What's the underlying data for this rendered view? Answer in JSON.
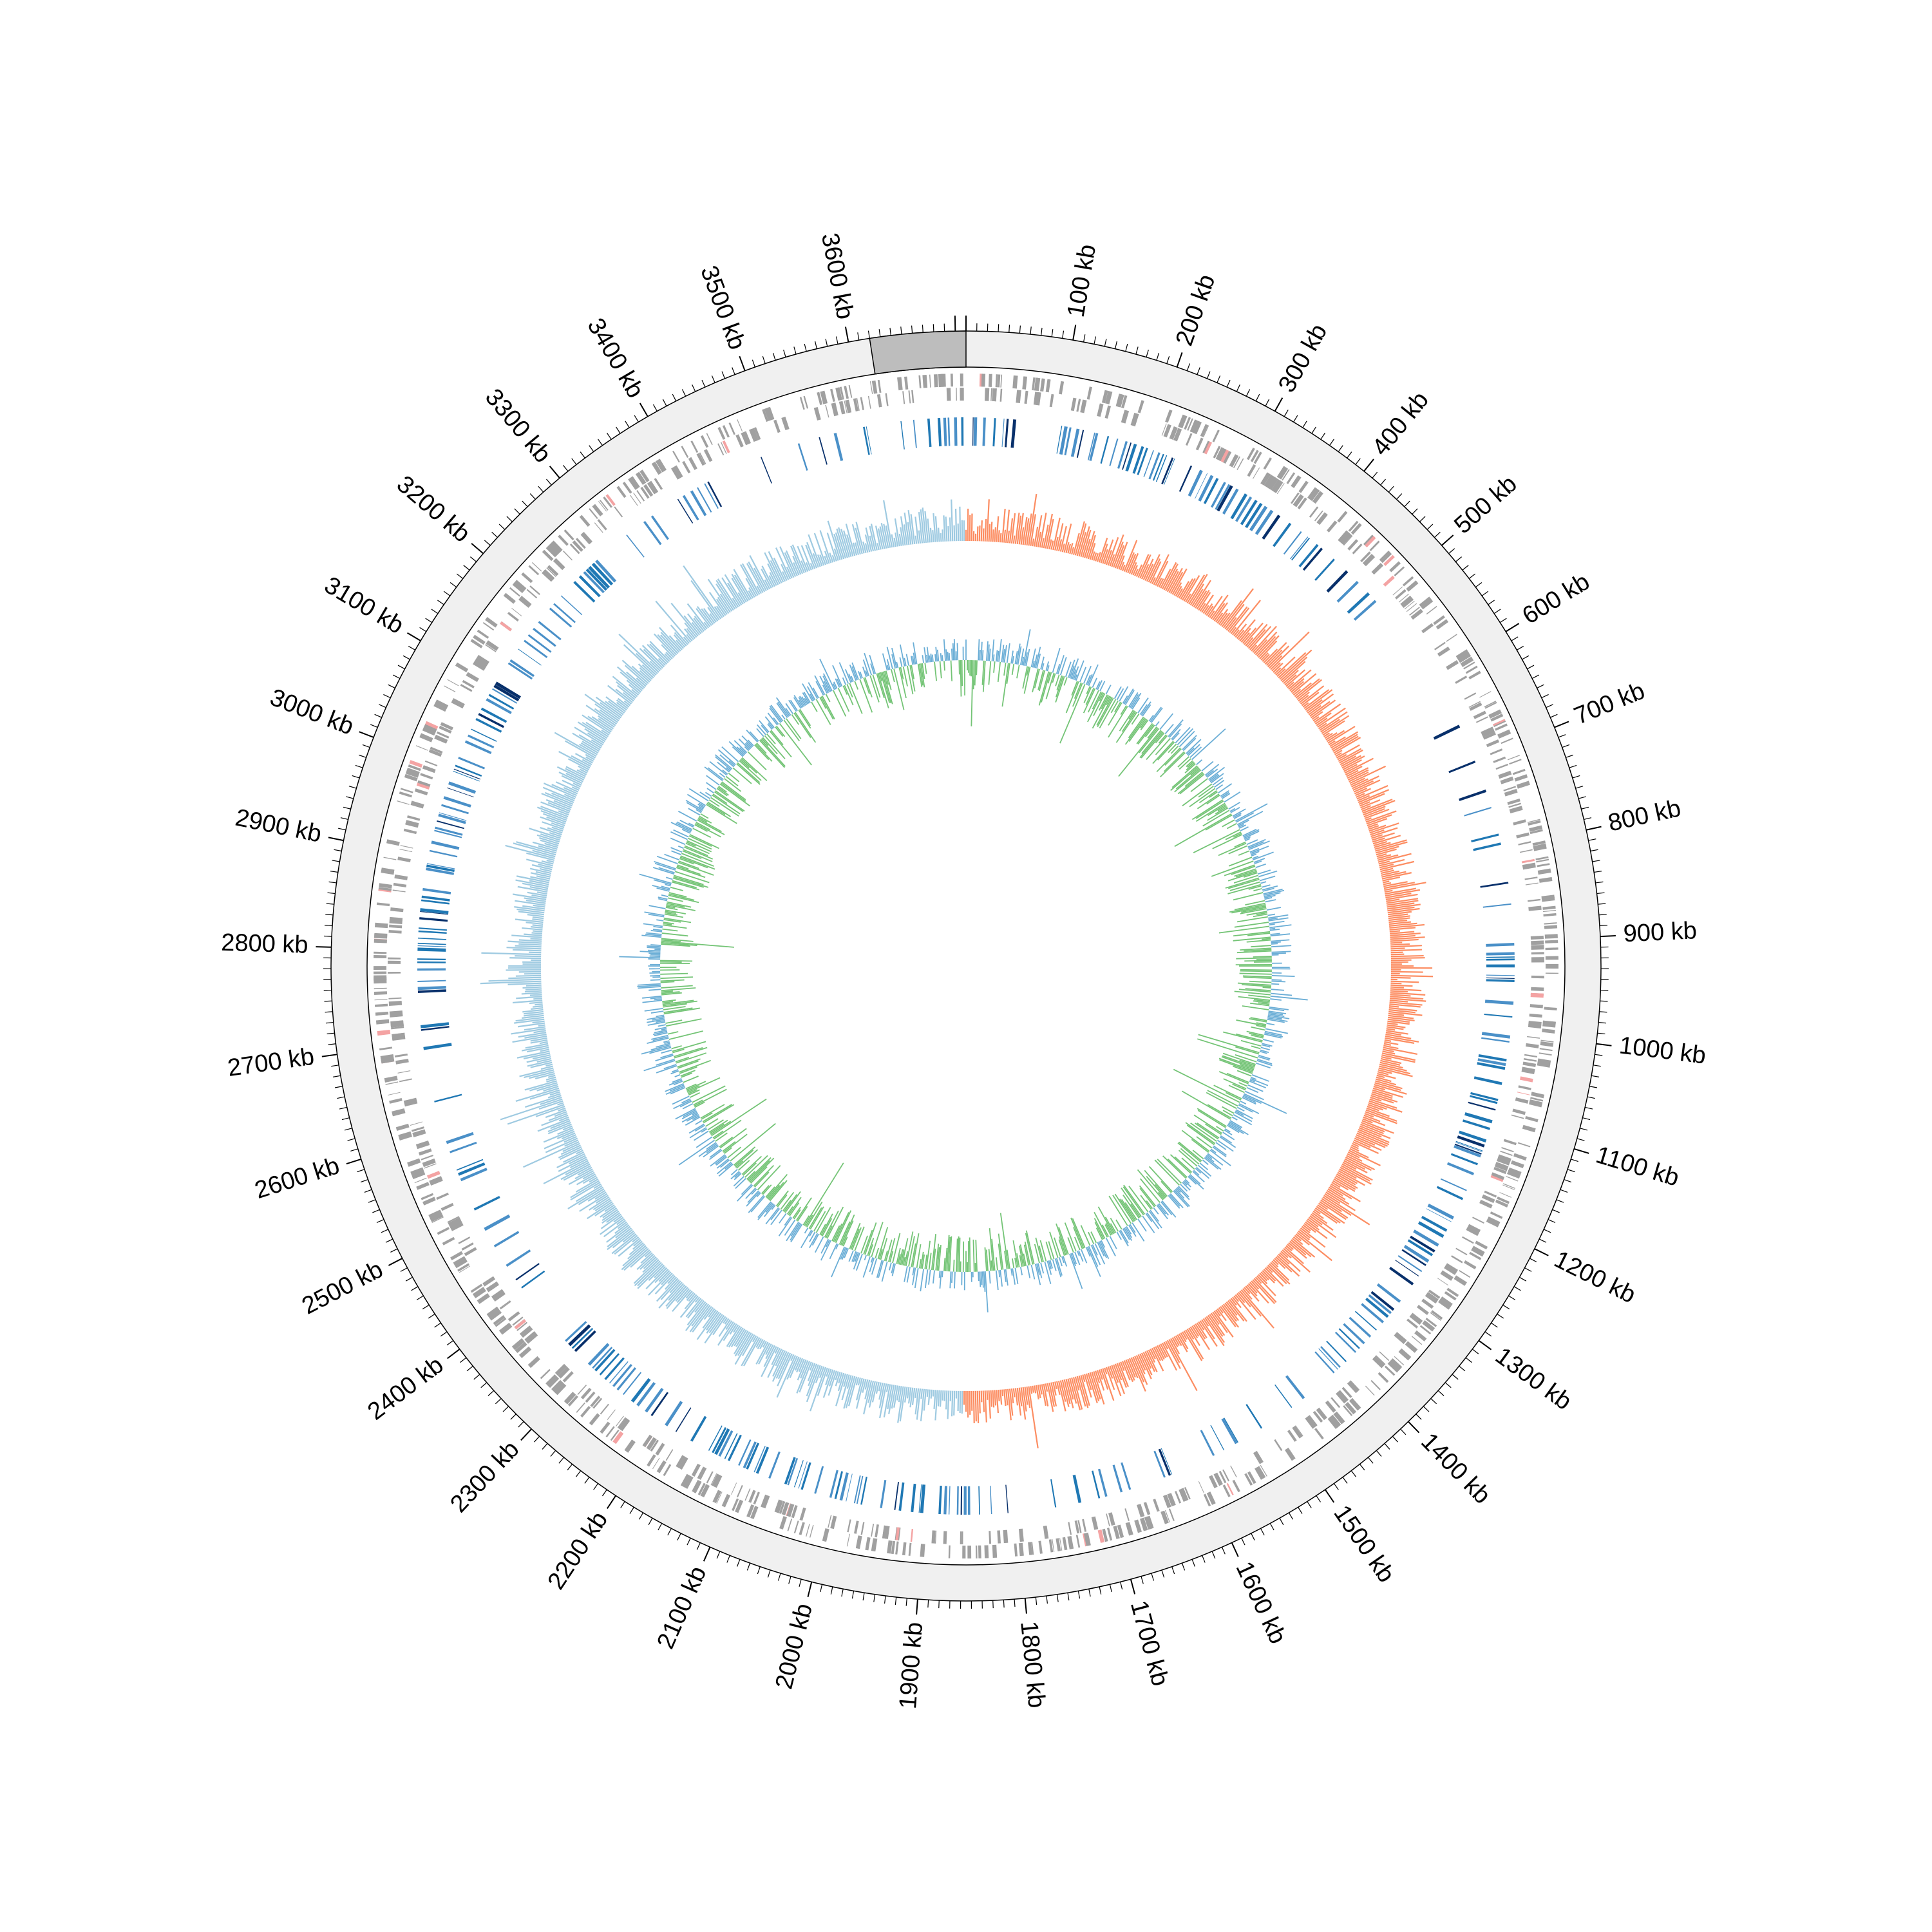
{
  "chart_data": {
    "type": "circular-genome",
    "genome_length_kb": 3710,
    "tick_unit": "kb",
    "major_tick_every_kb": 100,
    "minor_tick_every_kb": 10,
    "tick_labels": [
      "100 kb",
      "200 kb",
      "300 kb",
      "400 kb",
      "500 kb",
      "600 kb",
      "700 kb",
      "800 kb",
      "900 kb",
      "1000 kb",
      "1100 kb",
      "1200 kb",
      "1300 kb",
      "1400 kb",
      "1500 kb",
      "1600 kb",
      "1700 kb",
      "1800 kb",
      "1900 kb",
      "2000 kb",
      "2100 kb",
      "2200 kb",
      "2300 kb",
      "2400 kb",
      "2500 kb",
      "2600 kb",
      "2700 kb",
      "2800 kb",
      "2900 kb",
      "3000 kb",
      "3100 kb",
      "3200 kb",
      "3300 kb",
      "3400 kb",
      "3500 kb",
      "3600 kb"
    ],
    "highlight_region_kb": [
      3620,
      3710
    ],
    "gc_skew_switch_kb": [
      0,
      1860
    ],
    "tracks": [
      "ideogram",
      "features-outer-strand",
      "features-inner-strand",
      "gene-clusters",
      "gc-skew",
      "gc-content"
    ]
  },
  "colors": {
    "ideogram_fill": "#f0f0f0",
    "ideogram_highlight": "#bdbdbd",
    "feature_gray": "#a0a0a0",
    "feature_pink": "#f4a3a3",
    "cluster_light": "#4a90c8",
    "cluster_mid": "#1f78b4",
    "cluster_dark": "#08306b",
    "skew_positive": "#fc8d62",
    "skew_negative": "#9ecae1",
    "gc_green": "#74c476",
    "gc_blue": "#6baed6"
  }
}
